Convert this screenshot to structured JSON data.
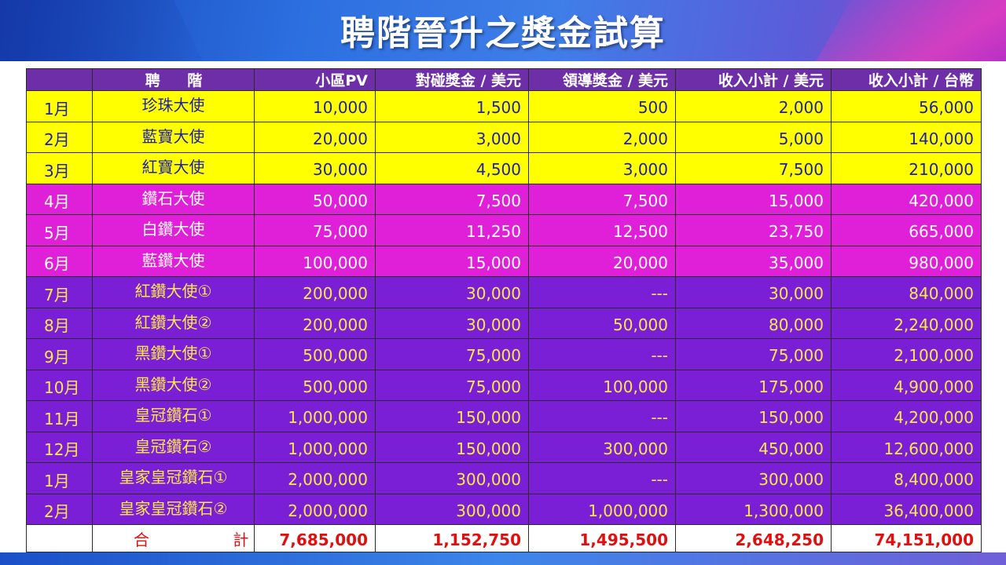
{
  "title": "聘階晉升之獎金試算",
  "headers": {
    "month": "",
    "rank": "聘 階",
    "pv": "小區PV",
    "pair_bonus": "對碰獎金 / 美元",
    "leader_bonus": "領導獎金 / 美元",
    "subtotal_usd": "收入小計 / 美元",
    "subtotal_twd": "收入小計 / 台幣"
  },
  "rows": [
    {
      "month": "1月",
      "rank": "珍珠大使",
      "pv": "10,000",
      "pair": "1,500",
      "leader": "500",
      "usd": "2,000",
      "twd": "56,000"
    },
    {
      "month": "2月",
      "rank": "藍寶大使",
      "pv": "20,000",
      "pair": "3,000",
      "leader": "2,000",
      "usd": "5,000",
      "twd": "140,000"
    },
    {
      "month": "3月",
      "rank": "紅寶大使",
      "pv": "30,000",
      "pair": "4,500",
      "leader": "3,000",
      "usd": "7,500",
      "twd": "210,000"
    },
    {
      "month": "4月",
      "rank": "鑽石大使",
      "pv": "50,000",
      "pair": "7,500",
      "leader": "7,500",
      "usd": "15,000",
      "twd": "420,000"
    },
    {
      "month": "5月",
      "rank": "白鑽大使",
      "pv": "75,000",
      "pair": "11,250",
      "leader": "12,500",
      "usd": "23,750",
      "twd": "665,000"
    },
    {
      "month": "6月",
      "rank": "藍鑽大使",
      "pv": "100,000",
      "pair": "15,000",
      "leader": "20,000",
      "usd": "35,000",
      "twd": "980,000"
    },
    {
      "month": "7月",
      "rank": "紅鑽大使①",
      "pv": "200,000",
      "pair": "30,000",
      "leader": "---",
      "usd": "30,000",
      "twd": "840,000"
    },
    {
      "month": "8月",
      "rank": "紅鑽大使②",
      "pv": "200,000",
      "pair": "30,000",
      "leader": "50,000",
      "usd": "80,000",
      "twd": "2,240,000"
    },
    {
      "month": "9月",
      "rank": "黑鑽大使①",
      "pv": "500,000",
      "pair": "75,000",
      "leader": "---",
      "usd": "75,000",
      "twd": "2,100,000"
    },
    {
      "month": "10月",
      "rank": "黑鑽大使②",
      "pv": "500,000",
      "pair": "75,000",
      "leader": "100,000",
      "usd": "175,000",
      "twd": "4,900,000"
    },
    {
      "month": "11月",
      "rank": "皇冠鑽石①",
      "pv": "1,000,000",
      "pair": "150,000",
      "leader": "---",
      "usd": "150,000",
      "twd": "4,200,000"
    },
    {
      "month": "12月",
      "rank": "皇冠鑽石②",
      "pv": "1,000,000",
      "pair": "150,000",
      "leader": "300,000",
      "usd": "450,000",
      "twd": "12,600,000"
    },
    {
      "month": "1月",
      "rank": "皇家皇冠鑽石①",
      "pv": "2,000,000",
      "pair": "300,000",
      "leader": "---",
      "usd": "300,000",
      "twd": "8,400,000"
    },
    {
      "month": "2月",
      "rank": "皇家皇冠鑽石②",
      "pv": "2,000,000",
      "pair": "300,000",
      "leader": "1,000,000",
      "usd": "1,300,000",
      "twd": "36,400,000"
    }
  ],
  "total": {
    "label": "合 計",
    "pv": "7,685,000",
    "pair": "1,152,750",
    "leader": "1,495,500",
    "usd": "2,648,250",
    "twd": "74,151,000"
  },
  "colors": {
    "header_bg": "#6d2ea8",
    "tier_yellow": "#ffff00",
    "tier_magenta": "#e020d8",
    "tier_purple": "#7a1fd6",
    "total_text": "#e01010"
  }
}
